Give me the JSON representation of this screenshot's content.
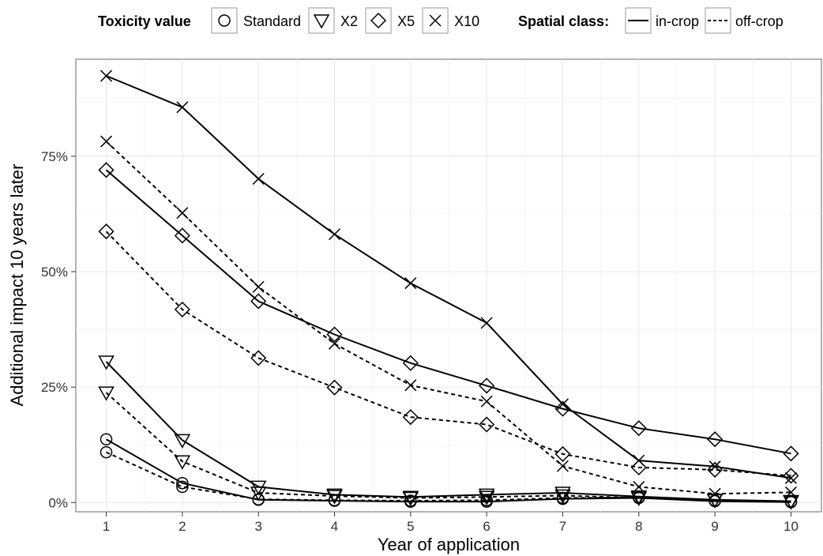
{
  "chart_data": {
    "type": "line",
    "xlabel": "Year of application",
    "ylabel": "Additional impact 10 years later",
    "x": [
      1,
      2,
      3,
      4,
      5,
      6,
      7,
      8,
      9,
      10
    ],
    "x_ticks": [
      "1",
      "2",
      "3",
      "4",
      "5",
      "6",
      "7",
      "8",
      "9",
      "10"
    ],
    "y_ticks": [
      0,
      25,
      50,
      75
    ],
    "y_tick_labels": [
      "0%",
      "25%",
      "50%",
      "75%"
    ],
    "ylim": [
      -2,
      96
    ],
    "xlim": [
      0.6,
      10.4
    ],
    "grid": true,
    "legend": {
      "placement": "top",
      "toxicity_title": "Toxicity value",
      "toxicity_items": [
        {
          "label": "Standard",
          "shape": "circle"
        },
        {
          "label": "X2",
          "shape": "triangle-down"
        },
        {
          "label": "X5",
          "shape": "diamond"
        },
        {
          "label": "X10",
          "shape": "cross"
        }
      ],
      "spatial_title": "Spatial class:",
      "spatial_items": [
        {
          "label": "in-crop",
          "linetype": "solid"
        },
        {
          "label": "off-crop",
          "linetype": "dashed"
        }
      ]
    },
    "series": [
      {
        "toxicity": "Standard",
        "spatial": "in-crop",
        "shape": "circle",
        "linetype": "solid",
        "values": [
          13.7,
          4.2,
          0.6,
          0.4,
          0.2,
          0.2,
          0.8,
          1.0,
          0.3,
          0.1
        ]
      },
      {
        "toxicity": "Standard",
        "spatial": "off-crop",
        "shape": "circle",
        "linetype": "dashed",
        "values": [
          10.9,
          3.4,
          0.7,
          0.5,
          0.4,
          0.5,
          1.0,
          1.1,
          0.4,
          0.2
        ]
      },
      {
        "toxicity": "X2",
        "spatial": "in-crop",
        "shape": "triangle-down",
        "linetype": "solid",
        "values": [
          30.5,
          13.5,
          3.4,
          1.7,
          1.2,
          1.7,
          2.1,
          1.3,
          0.6,
          0.3
        ]
      },
      {
        "toxicity": "X2",
        "spatial": "off-crop",
        "shape": "triangle-down",
        "linetype": "dashed",
        "values": [
          23.8,
          8.9,
          2.1,
          1.4,
          1.0,
          1.2,
          1.5,
          1.0,
          0.5,
          0.2
        ]
      },
      {
        "toxicity": "X5",
        "spatial": "in-crop",
        "shape": "diamond",
        "linetype": "solid",
        "values": [
          72.0,
          57.8,
          43.6,
          36.4,
          30.2,
          25.3,
          20.3,
          16.1,
          13.7,
          10.6
        ]
      },
      {
        "toxicity": "X5",
        "spatial": "off-crop",
        "shape": "diamond",
        "linetype": "dashed",
        "values": [
          58.7,
          41.8,
          31.3,
          24.9,
          18.5,
          16.9,
          10.5,
          7.6,
          7.1,
          5.8
        ]
      },
      {
        "toxicity": "X10",
        "spatial": "in-crop",
        "shape": "cross",
        "linetype": "solid",
        "values": [
          92.4,
          85.6,
          70.1,
          58.1,
          47.5,
          38.9,
          21.3,
          9.1,
          7.8,
          5.3
        ]
      },
      {
        "toxicity": "X10",
        "spatial": "off-crop",
        "shape": "cross",
        "linetype": "dashed",
        "values": [
          78.2,
          62.7,
          46.7,
          34.4,
          25.4,
          21.9,
          7.9,
          3.4,
          1.9,
          2.2
        ]
      }
    ]
  }
}
